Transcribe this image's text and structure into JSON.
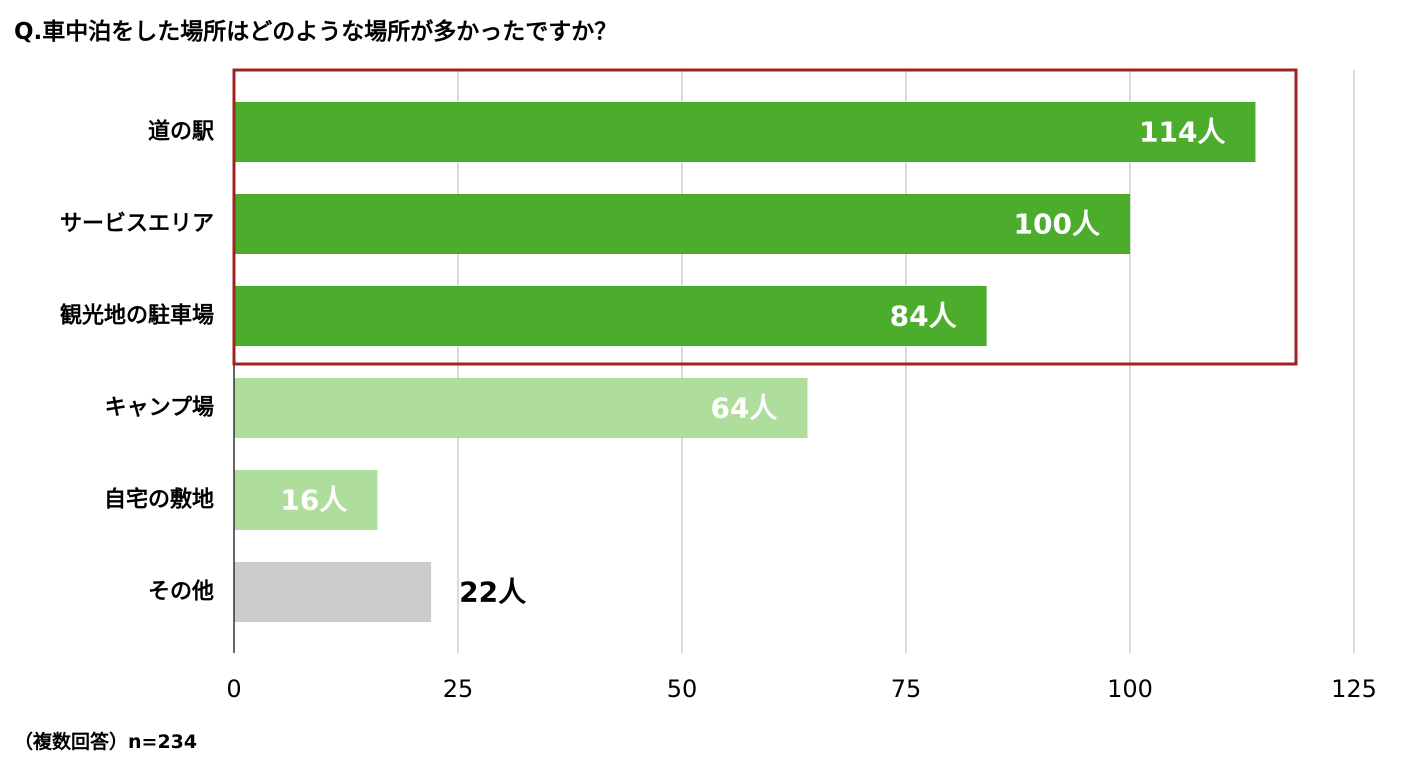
{
  "chart_data": {
    "type": "bar",
    "orientation": "horizontal",
    "title": "Q.車中泊をした場所はどのような場所が多かったですか？",
    "note": "（複数回答）n=234",
    "categories": [
      "道の駅",
      "サービスエリア",
      "観光地の駐車場",
      "キャンプ場",
      "自宅の敷地",
      "その他"
    ],
    "values": [
      114,
      100,
      84,
      64,
      16,
      22
    ],
    "data_labels": [
      "114人",
      "100人",
      "84人",
      "64人",
      "16人",
      "22人"
    ],
    "bar_colors": [
      "#4cac2c",
      "#4cac2c",
      "#4cac2c",
      "#aedd9c",
      "#aedd9c",
      "#cccccc"
    ],
    "label_colors": [
      "#ffffff",
      "#ffffff",
      "#ffffff",
      "#ffffff",
      "#ffffff",
      "#000000"
    ],
    "label_position": [
      "inside",
      "inside",
      "inside",
      "inside",
      "inside",
      "outside"
    ],
    "xlim": [
      0,
      125
    ],
    "xticks": [
      0,
      25,
      50,
      75,
      100,
      125
    ],
    "xtick_labels": [
      "0",
      "25",
      "50",
      "75",
      "100",
      "125"
    ],
    "grid": true,
    "highlight": {
      "categories": [
        "道の駅",
        "サービスエリア",
        "観光地の駐車場"
      ],
      "color": "#9e2424"
    }
  }
}
